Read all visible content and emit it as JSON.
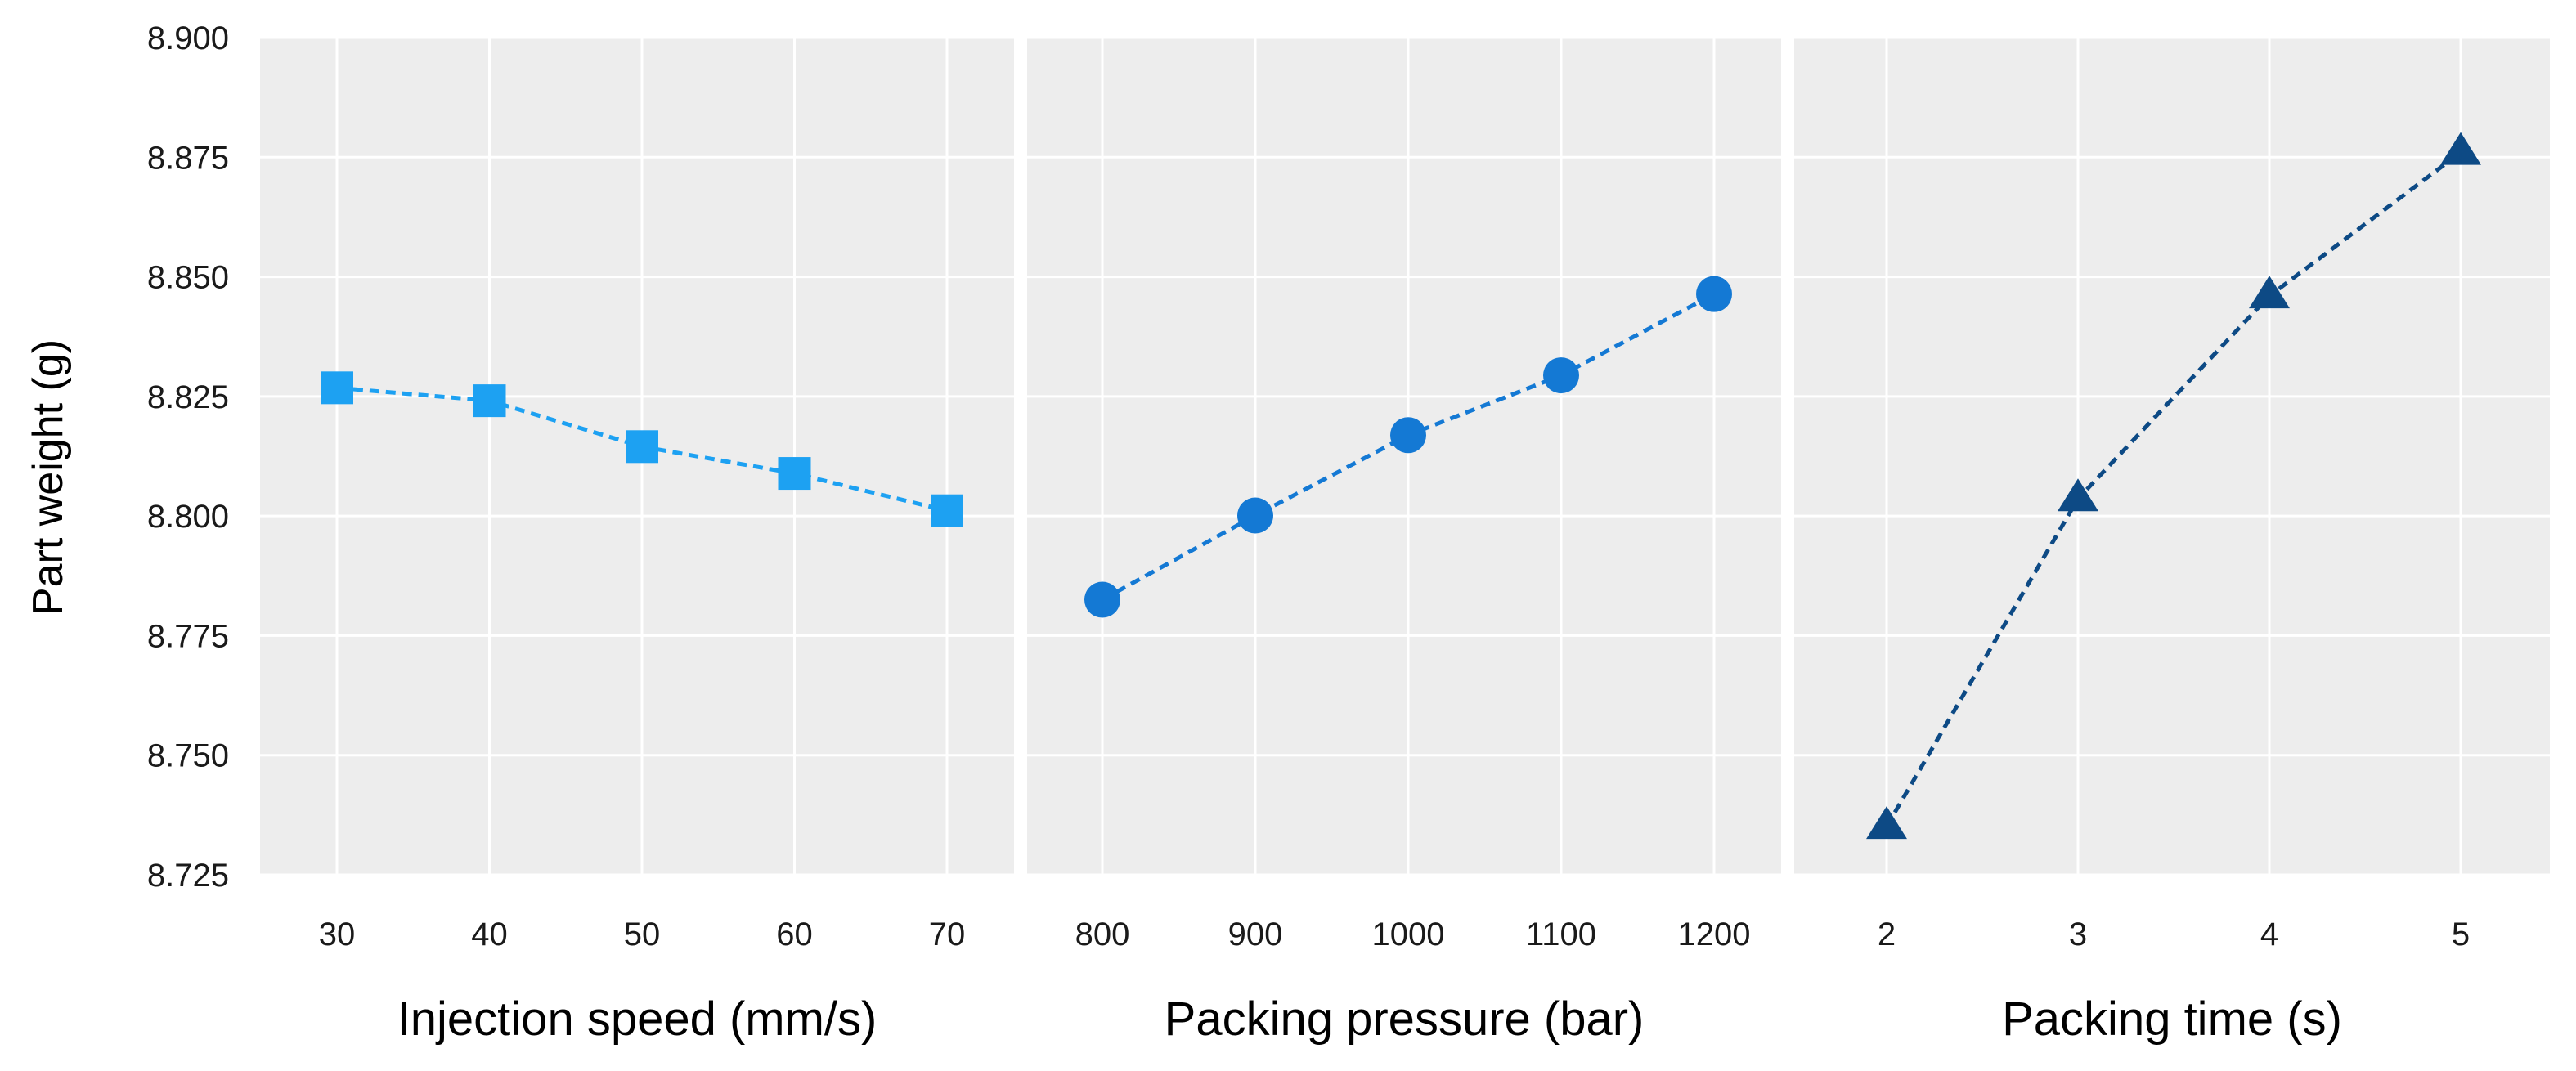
{
  "chart_data": {
    "type": "line",
    "ylabel": "Part weight (g)",
    "ylim": [
      8.725,
      8.9
    ],
    "yticks": [
      "8.900",
      "8.875",
      "8.850",
      "8.825",
      "8.800",
      "8.775",
      "8.750",
      "8.725"
    ],
    "ytick_values": [
      8.9,
      8.875,
      8.85,
      8.825,
      8.8,
      8.775,
      8.75,
      8.725
    ],
    "grid": true,
    "panels": [
      {
        "xlabel": "Injection speed (mm/s)",
        "categories": [
          "30",
          "40",
          "50",
          "60",
          "70"
        ],
        "values": [
          8.8268,
          8.8241,
          8.8145,
          8.8089,
          8.8011
        ],
        "marker": "square",
        "color": "#1da1f2"
      },
      {
        "xlabel": "Packing pressure (bar)",
        "categories": [
          "800",
          "900",
          "1000",
          "1100",
          "1200"
        ],
        "values": [
          8.7825,
          8.8001,
          8.8169,
          8.8294,
          8.8464
        ],
        "marker": "circle",
        "color": "#1479d4"
      },
      {
        "xlabel": "Packing time (s)",
        "categories": [
          "2",
          "3",
          "4",
          "5"
        ],
        "values": [
          8.7351,
          8.8036,
          8.846,
          8.876
        ],
        "marker": "triangle",
        "color": "#0d4a85"
      }
    ]
  }
}
